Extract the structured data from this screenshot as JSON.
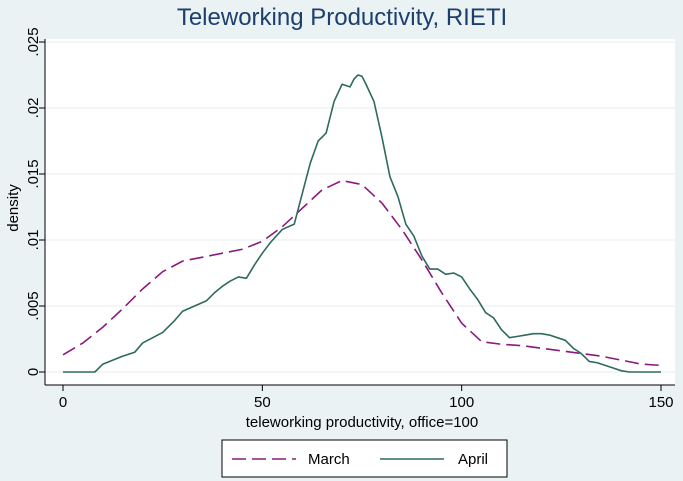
{
  "chart_data": {
    "type": "line",
    "title": "Teleworking Productivity, RIETI",
    "xlabel": "teleworking productivity, office=100",
    "ylabel": "density",
    "xlim": [
      0,
      150
    ],
    "ylim": [
      0,
      0.025
    ],
    "xticks": [
      0,
      50,
      100,
      150
    ],
    "xtick_labels": [
      "0",
      "50",
      "100",
      "150"
    ],
    "yticks": [
      0,
      0.005,
      0.01,
      0.015,
      0.02,
      0.025
    ],
    "ytick_labels": [
      "0",
      ".005",
      ".01",
      ".015",
      ".02",
      ".025"
    ],
    "grid": true,
    "legend_position": "bottom",
    "colors": {
      "background": "#eaf2f3",
      "plot_bg": "#ffffff",
      "grid": "#e4ecee",
      "title": "#1c3f6e"
    },
    "series": [
      {
        "name": "March",
        "color": "#8b1a7f",
        "dash": "dashed",
        "x": [
          0,
          5,
          10,
          15,
          20,
          25,
          30,
          35,
          40,
          45,
          50,
          55,
          60,
          65,
          70,
          75,
          80,
          85,
          90,
          95,
          100,
          105,
          110,
          115,
          120,
          125,
          130,
          135,
          140,
          145,
          150
        ],
        "y": [
          0.0013,
          0.0022,
          0.0034,
          0.0048,
          0.0063,
          0.0076,
          0.0084,
          0.0087,
          0.009,
          0.0093,
          0.0099,
          0.011,
          0.0124,
          0.0138,
          0.0145,
          0.0142,
          0.0128,
          0.0108,
          0.0085,
          0.006,
          0.0037,
          0.0023,
          0.0021,
          0.002,
          0.0018,
          0.0016,
          0.0014,
          0.0012,
          0.0009,
          0.0006,
          0.0005
        ]
      },
      {
        "name": "April",
        "color": "#2f6a5e",
        "dash": "solid",
        "x": [
          0,
          4,
          8,
          10,
          15,
          18,
          20,
          25,
          28,
          30,
          33,
          36,
          38,
          40,
          42,
          44,
          46,
          48,
          50,
          52,
          55,
          58,
          60,
          62,
          64,
          66,
          68,
          70,
          72,
          73,
          74,
          75,
          76,
          78,
          80,
          82,
          84,
          86,
          88,
          90,
          92,
          94,
          96,
          98,
          100,
          102,
          104,
          106,
          108,
          110,
          112,
          114,
          116,
          118,
          120,
          122,
          124,
          126,
          128,
          130,
          132,
          134,
          136,
          138,
          140,
          142,
          144,
          146,
          148,
          150
        ],
        "y": [
          0,
          0,
          0,
          0.0006,
          0.0012,
          0.0015,
          0.0022,
          0.003,
          0.0039,
          0.0046,
          0.005,
          0.0054,
          0.006,
          0.0065,
          0.0069,
          0.0072,
          0.0071,
          0.0081,
          0.009,
          0.0098,
          0.0108,
          0.0112,
          0.0135,
          0.0158,
          0.0175,
          0.0181,
          0.0205,
          0.0218,
          0.0216,
          0.0222,
          0.0225,
          0.0224,
          0.0218,
          0.0205,
          0.0178,
          0.0148,
          0.0133,
          0.0112,
          0.0103,
          0.0088,
          0.0078,
          0.0078,
          0.0074,
          0.0075,
          0.0072,
          0.0063,
          0.0055,
          0.0045,
          0.0041,
          0.0032,
          0.0026,
          0.0027,
          0.0028,
          0.0029,
          0.0029,
          0.0028,
          0.0026,
          0.0024,
          0.0018,
          0.0014,
          0.0008,
          0.0007,
          0.0005,
          0.0003,
          0.0001,
          0,
          0,
          0,
          0,
          0
        ]
      }
    ]
  }
}
